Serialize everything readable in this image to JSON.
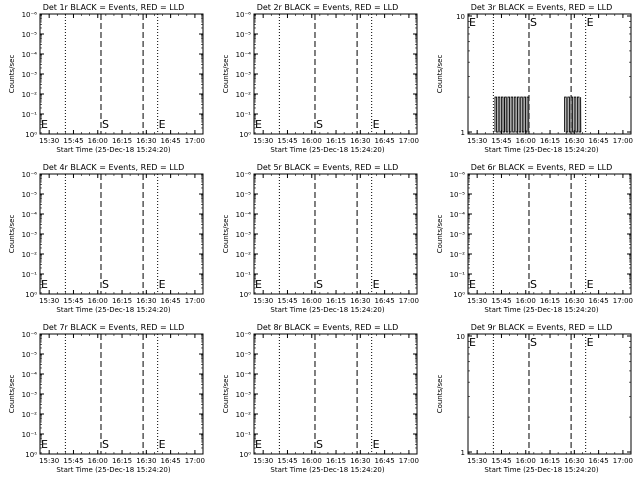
{
  "figure": {
    "background": "#ffffff",
    "foreground": "#000000"
  },
  "chart_data": [
    {
      "id": "det1",
      "type": "line",
      "title": "Det 1r BLACK = Events, RED = LLD",
      "xlabel": "Start Time (25-Dec-18 15:24:20)",
      "ylabel": "Counts/sec",
      "xticks": [
        "15:30",
        "15:45",
        "16:00",
        "16:15",
        "16:30",
        "16:45",
        "17:00"
      ],
      "yticks": [
        "10⁰",
        "10⁻¹",
        "10⁻²",
        "10⁻³",
        "10⁻⁴",
        "10⁻⁵",
        "10⁻⁶"
      ],
      "yscale": "log",
      "markers": [
        {
          "label": "E",
          "time": "15:24",
          "style": "dotted"
        },
        {
          "label": "S",
          "time": "16:02",
          "style": "dashed"
        },
        {
          "label": "E",
          "time": "16:37",
          "style": "dotted"
        }
      ],
      "extra_lines": [
        {
          "time": "15:40",
          "style": "dotted"
        },
        {
          "time": "16:28",
          "style": "dashed"
        }
      ],
      "series": []
    },
    {
      "id": "det2",
      "type": "line",
      "title": "Det 2r BLACK = Events, RED = LLD",
      "xlabel": "Start Time (25-Dec-18 15:24:20)",
      "ylabel": "Counts/sec",
      "xticks": [
        "15:30",
        "15:45",
        "16:00",
        "16:15",
        "16:30",
        "16:45",
        "17:00"
      ],
      "yticks": [
        "10⁰",
        "10⁻¹",
        "10⁻²",
        "10⁻³",
        "10⁻⁴",
        "10⁻⁵",
        "10⁻⁶"
      ],
      "yscale": "log",
      "markers": [
        {
          "label": "E",
          "time": "15:24",
          "style": "dotted"
        },
        {
          "label": "S",
          "time": "16:02",
          "style": "dashed"
        },
        {
          "label": "E",
          "time": "16:37",
          "style": "dotted"
        }
      ],
      "extra_lines": [
        {
          "time": "15:40",
          "style": "dotted"
        },
        {
          "time": "16:28",
          "style": "dashed"
        }
      ],
      "series": []
    },
    {
      "id": "det3",
      "type": "line",
      "title": "Det 3r BLACK = Events, RED = LLD",
      "xlabel": "Start Time (25-Dec-18 15:24:20)",
      "ylabel": "Counts/sec",
      "xticks": [
        "15:30",
        "15:45",
        "16:00",
        "16:15",
        "16:30",
        "16:45",
        "17:00"
      ],
      "yticks": [
        "1",
        "10"
      ],
      "yscale": "log",
      "markers": [
        {
          "label": "E",
          "time": "15:24",
          "style": "dotted"
        },
        {
          "label": "S",
          "time": "16:02",
          "style": "dashed"
        },
        {
          "label": "E",
          "time": "16:37",
          "style": "dotted"
        }
      ],
      "extra_lines": [
        {
          "time": "15:40",
          "style": "dotted"
        },
        {
          "time": "16:28",
          "style": "dashed"
        }
      ],
      "series": [
        {
          "color": "#000000",
          "segments": [
            {
              "start": "15:41",
              "end": "15:47"
            },
            {
              "start": "15:47",
              "end": "16:02"
            },
            {
              "start": "16:24",
              "end": "16:34"
            }
          ],
          "low": 1,
          "high": 2
        }
      ]
    },
    {
      "id": "det4",
      "type": "line",
      "title": "Det 4r BLACK = Events, RED = LLD",
      "xlabel": "Start Time (25-Dec-18 15:24:20)",
      "ylabel": "Counts/sec",
      "xticks": [
        "15:30",
        "15:45",
        "16:00",
        "16:15",
        "16:30",
        "16:45",
        "17:00"
      ],
      "yticks": [
        "10⁰",
        "10⁻¹",
        "10⁻²",
        "10⁻³",
        "10⁻⁴",
        "10⁻⁵",
        "10⁻⁶"
      ],
      "yscale": "log",
      "markers": [
        {
          "label": "E",
          "time": "15:24",
          "style": "dotted"
        },
        {
          "label": "S",
          "time": "16:02",
          "style": "dashed"
        },
        {
          "label": "E",
          "time": "16:37",
          "style": "dotted"
        }
      ],
      "extra_lines": [
        {
          "time": "15:40",
          "style": "dotted"
        },
        {
          "time": "16:28",
          "style": "dashed"
        }
      ],
      "series": []
    },
    {
      "id": "det5",
      "type": "line",
      "title": "Det 5r BLACK = Events, RED = LLD",
      "xlabel": "Start Time (25-Dec-18 15:24:20)",
      "ylabel": "Counts/sec",
      "xticks": [
        "15:30",
        "15:45",
        "16:00",
        "16:15",
        "16:30",
        "16:45",
        "17:00"
      ],
      "yticks": [
        "10⁰",
        "10⁻¹",
        "10⁻²",
        "10⁻³",
        "10⁻⁴",
        "10⁻⁵",
        "10⁻⁶"
      ],
      "yscale": "log",
      "markers": [
        {
          "label": "E",
          "time": "15:24",
          "style": "dotted"
        },
        {
          "label": "S",
          "time": "16:02",
          "style": "dashed"
        },
        {
          "label": "E",
          "time": "16:37",
          "style": "dotted"
        }
      ],
      "extra_lines": [
        {
          "time": "15:40",
          "style": "dotted"
        },
        {
          "time": "16:28",
          "style": "dashed"
        }
      ],
      "series": []
    },
    {
      "id": "det6",
      "type": "line",
      "title": "Det 6r BLACK = Events, RED = LLD",
      "xlabel": "Start Time (25-Dec-18 15:24:20)",
      "ylabel": "Counts/sec",
      "xticks": [
        "15:30",
        "15:45",
        "16:00",
        "16:15",
        "16:30",
        "16:45",
        "17:00"
      ],
      "yticks": [
        "10⁰",
        "10⁻¹",
        "10⁻²",
        "10⁻³",
        "10⁻⁴",
        "10⁻⁵",
        "10⁻⁶"
      ],
      "yscale": "log",
      "markers": [
        {
          "label": "E",
          "time": "15:24",
          "style": "dotted"
        },
        {
          "label": "S",
          "time": "16:02",
          "style": "dashed"
        },
        {
          "label": "E",
          "time": "16:37",
          "style": "dotted"
        }
      ],
      "extra_lines": [
        {
          "time": "15:40",
          "style": "dotted"
        },
        {
          "time": "16:28",
          "style": "dashed"
        }
      ],
      "series": []
    },
    {
      "id": "det7",
      "type": "line",
      "title": "Det 7r BLACK = Events, RED = LLD",
      "xlabel": "Start Time (25-Dec-18 15:24:20)",
      "ylabel": "Counts/sec",
      "xticks": [
        "15:30",
        "15:45",
        "16:00",
        "16:15",
        "16:30",
        "16:45",
        "17:00"
      ],
      "yticks": [
        "10⁰",
        "10⁻¹",
        "10⁻²",
        "10⁻³",
        "10⁻⁴",
        "10⁻⁵",
        "10⁻⁶"
      ],
      "yscale": "log",
      "markers": [
        {
          "label": "E",
          "time": "15:24",
          "style": "dotted"
        },
        {
          "label": "S",
          "time": "16:02",
          "style": "dashed"
        },
        {
          "label": "E",
          "time": "16:37",
          "style": "dotted"
        }
      ],
      "extra_lines": [
        {
          "time": "15:40",
          "style": "dotted"
        },
        {
          "time": "16:28",
          "style": "dashed"
        }
      ],
      "series": []
    },
    {
      "id": "det8",
      "type": "line",
      "title": "Det 8r BLACK = Events, RED = LLD",
      "xlabel": "Start Time (25-Dec-18 15:24:20)",
      "ylabel": "Counts/sec",
      "xticks": [
        "15:30",
        "15:45",
        "16:00",
        "16:15",
        "16:30",
        "16:45",
        "17:00"
      ],
      "yticks": [
        "10⁰",
        "10⁻¹",
        "10⁻²",
        "10⁻³",
        "10⁻⁴",
        "10⁻⁵",
        "10⁻⁶"
      ],
      "yscale": "log",
      "markers": [
        {
          "label": "E",
          "time": "15:24",
          "style": "dotted"
        },
        {
          "label": "S",
          "time": "16:02",
          "style": "dashed"
        },
        {
          "label": "E",
          "time": "16:37",
          "style": "dotted"
        }
      ],
      "extra_lines": [
        {
          "time": "15:40",
          "style": "dotted"
        },
        {
          "time": "16:28",
          "style": "dashed"
        }
      ],
      "series": []
    },
    {
      "id": "det9",
      "type": "line",
      "title": "Det 9r BLACK = Events, RED = LLD",
      "xlabel": "Start Time (25-Dec-18 15:24:20)",
      "ylabel": "Counts/sec",
      "xticks": [
        "15:30",
        "15:45",
        "16:00",
        "16:15",
        "16:30",
        "16:45",
        "17:00"
      ],
      "yticks": [
        "1",
        "10"
      ],
      "yscale": "log",
      "markers": [
        {
          "label": "E",
          "time": "15:24",
          "style": "dotted"
        },
        {
          "label": "S",
          "time": "16:02",
          "style": "dashed"
        },
        {
          "label": "E",
          "time": "16:37",
          "style": "dotted"
        }
      ],
      "extra_lines": [
        {
          "time": "15:40",
          "style": "dotted"
        },
        {
          "time": "16:28",
          "style": "dashed"
        }
      ],
      "series": []
    }
  ]
}
